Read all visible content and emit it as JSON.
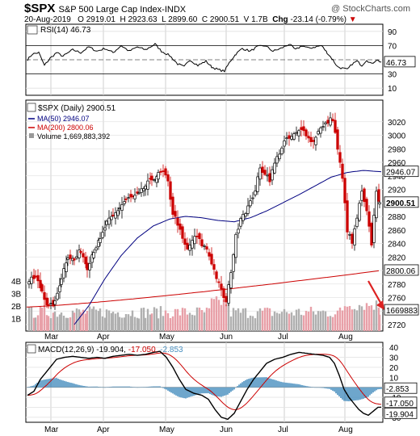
{
  "header": {
    "symbol": "$SPX",
    "name": "S&P 500 Large Cap Index",
    "exchange": "INDX",
    "watermark": "@ StockCharts.com",
    "date": "20-Aug-2019",
    "o_label": "O",
    "o": "2919.01",
    "h_label": "H",
    "h": "2923.63",
    "l_label": "L",
    "l": "2899.60",
    "c_label": "C",
    "c": "2900.51",
    "v_label": "V",
    "v": "1.7B",
    "chg_label": "Chg",
    "chg": "-23.14 (-0.79%)",
    "arrow": "▼"
  },
  "months": [
    "Mar",
    "Apr",
    "May",
    "Jun",
    "Jul",
    "Aug"
  ],
  "colors": {
    "up": "#000000",
    "down": "#cc0000",
    "ma50": "#000080",
    "ma200": "#cc0000",
    "volume_up": "#b0b0b0",
    "volume_down": "#e8a0a8",
    "macd_hist": "#4a90c0",
    "arrow": "#dd2222"
  },
  "rsi": {
    "legend": "RSI(14) 46.73",
    "value_label": "46.73",
    "levels": [
      "90",
      "70",
      "50",
      "30",
      "10"
    ]
  },
  "price": {
    "legend_main": "$SPX (Daily) 2900.51",
    "legend_ma50": "MA(50) 2946.07",
    "legend_ma200": "MA(200) 2800.06",
    "legend_volume": "Volume 1,669,883,392",
    "price_ticks": [
      "3020",
      "3000",
      "2980",
      "2960",
      "2940",
      "2920",
      "2900",
      "2880",
      "2860",
      "2840",
      "2820",
      "2800",
      "2780",
      "2760",
      "2740",
      "2720"
    ],
    "volume_ticks": [
      "4B",
      "3B",
      "2B",
      "1B"
    ],
    "tag_ma50": "2946.07",
    "tag_close": "2900.51",
    "tag_ma200": "2800.06",
    "tag_volume": "1669883"
  },
  "macd": {
    "legend_name": "MACD(12,26,9)",
    "legend_macd": "-19.904",
    "legend_signal": "-17.050",
    "legend_hist": "-2.853",
    "ticks": [
      "40",
      "30",
      "20",
      "10",
      "0",
      "-10",
      "-20",
      "-30"
    ],
    "tag_hist": "-2.853",
    "tag_signal": "-17.050",
    "tag_macd": "-19.904"
  },
  "chart_data": {
    "type": "candlestick",
    "title": "$SPX S&P 500 Large Cap Index",
    "period": "Daily",
    "x_range": [
      "2019-02-27",
      "2019-08-20"
    ],
    "price_ylim": [
      2720,
      3040
    ],
    "price_candles_weekly_close": [
      {
        "date": "2019-02-28",
        "close": 2784
      },
      {
        "date": "2019-03-08",
        "close": 2743
      },
      {
        "date": "2019-03-15",
        "close": 2822
      },
      {
        "date": "2019-03-22",
        "close": 2801
      },
      {
        "date": "2019-03-29",
        "close": 2834
      },
      {
        "date": "2019-04-05",
        "close": 2893
      },
      {
        "date": "2019-04-12",
        "close": 2907
      },
      {
        "date": "2019-04-19",
        "close": 2905
      },
      {
        "date": "2019-04-26",
        "close": 2939
      },
      {
        "date": "2019-05-03",
        "close": 2945
      },
      {
        "date": "2019-05-10",
        "close": 2881
      },
      {
        "date": "2019-05-17",
        "close": 2859
      },
      {
        "date": "2019-05-24",
        "close": 2826
      },
      {
        "date": "2019-05-31",
        "close": 2752
      },
      {
        "date": "2019-06-07",
        "close": 2873
      },
      {
        "date": "2019-06-14",
        "close": 2887
      },
      {
        "date": "2019-06-21",
        "close": 2950
      },
      {
        "date": "2019-06-28",
        "close": 2941
      },
      {
        "date": "2019-07-05",
        "close": 2990
      },
      {
        "date": "2019-07-12",
        "close": 3013
      },
      {
        "date": "2019-07-19",
        "close": 2976
      },
      {
        "date": "2019-07-26",
        "close": 3025
      },
      {
        "date": "2019-08-02",
        "close": 2932
      },
      {
        "date": "2019-08-09",
        "close": 2918
      },
      {
        "date": "2019-08-16",
        "close": 2888
      },
      {
        "date": "2019-08-20",
        "close": 2900
      }
    ],
    "ma50_last": 2946.07,
    "ma200_last": 2800.06,
    "volume_last": 1669883392,
    "rsi_last": 46.73,
    "rsi_ylim": [
      0,
      100
    ],
    "macd_last": -19.904,
    "signal_last": -17.05,
    "histogram_last": -2.853,
    "macd_ylim": [
      -35,
      45
    ]
  }
}
